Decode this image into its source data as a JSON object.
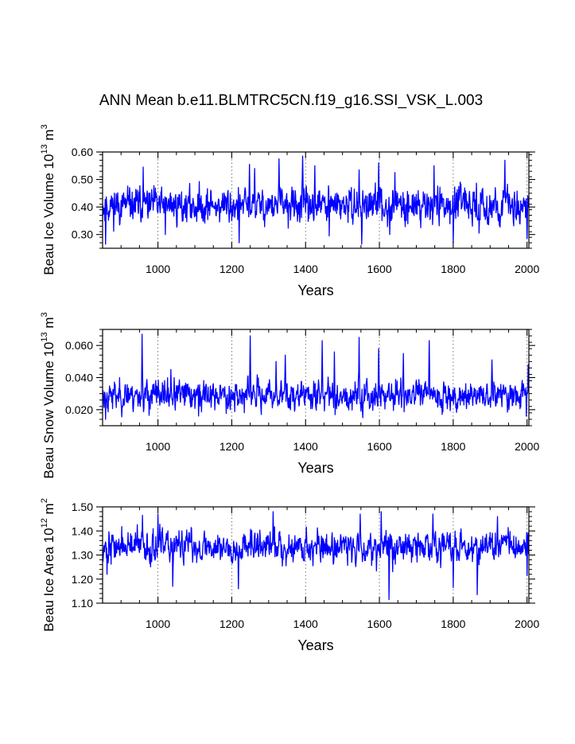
{
  "figure": {
    "title": "ANN Mean b.e11.BLMTRC5CN.f19_g16.SSI_VSK_L.003"
  },
  "colors": {
    "series": "#0000ff",
    "axis": "#000000",
    "grid": "#555555",
    "background": "#ffffff"
  },
  "chart_data": [
    {
      "type": "line",
      "title": "ANN Mean b.e11.BLMTRC5CN.f19_g16.SSI_VSK_L.003",
      "xlabel": "Years",
      "ylabel_main": "Beau Ice Volume 10",
      "ylabel_exp": "13",
      "ylabel_unit": "m",
      "ylabel_unit_exp": "3",
      "xlim": [
        850,
        2005
      ],
      "ylim": [
        0.25,
        0.6
      ],
      "xticks": [
        1000,
        1200,
        1400,
        1600,
        1800,
        2000
      ],
      "xtick_labels": [
        "1000",
        "1200",
        "1400",
        "1600",
        "1800",
        "2000"
      ],
      "yticks": [
        0.3,
        0.4,
        0.5,
        0.6
      ],
      "ytick_labels": [
        "0.30",
        "0.40",
        "0.50",
        "0.60"
      ],
      "grid": "vertical dotted at major x ticks",
      "series": [
        {
          "name": "Beau Ice Volume",
          "x_start": 850,
          "x_end": 2005,
          "mean": 0.405,
          "sd": 0.045,
          "min": 0.26,
          "max": 0.585,
          "seed": 11,
          "peaks": [
            [
              960,
              0.545
            ],
            [
              1248,
              0.555
            ],
            [
              1262,
              0.54
            ],
            [
              1328,
              0.575
            ],
            [
              1392,
              0.585
            ],
            [
              1425,
              0.55
            ],
            [
              1545,
              0.535
            ],
            [
              1598,
              0.56
            ],
            [
              1642,
              0.525
            ],
            [
              1748,
              0.55
            ],
            [
              1940,
              0.57
            ]
          ],
          "troughs": [
            [
              858,
              0.265
            ],
            [
              1020,
              0.3
            ],
            [
              1220,
              0.27
            ],
            [
              1464,
              0.295
            ],
            [
              1552,
              0.265
            ],
            [
              1628,
              0.3
            ],
            [
              1800,
              0.27
            ],
            [
              1870,
              0.305
            ],
            [
              2000,
              0.285
            ]
          ]
        }
      ]
    },
    {
      "type": "line",
      "xlabel": "Years",
      "ylabel_main": "Beau Snow Volume 10",
      "ylabel_exp": "13",
      "ylabel_unit": "m",
      "ylabel_unit_exp": "3",
      "xlim": [
        850,
        2005
      ],
      "ylim": [
        0.01,
        0.07
      ],
      "xticks": [
        1000,
        1200,
        1400,
        1600,
        1800,
        2000
      ],
      "xtick_labels": [
        "1000",
        "1200",
        "1400",
        "1600",
        "1800",
        "2000"
      ],
      "yticks": [
        0.02,
        0.04,
        0.06
      ],
      "ytick_labels": [
        "0.020",
        "0.040",
        "0.060"
      ],
      "grid": "vertical dotted at major x ticks",
      "series": [
        {
          "name": "Beau Snow Volume",
          "x_start": 850,
          "x_end": 2005,
          "mean": 0.029,
          "sd": 0.0065,
          "min": 0.014,
          "max": 0.067,
          "seed": 23,
          "peaks": [
            [
              957,
              0.067
            ],
            [
              1035,
              0.045
            ],
            [
              1250,
              0.066
            ],
            [
              1320,
              0.05
            ],
            [
              1345,
              0.054
            ],
            [
              1445,
              0.063
            ],
            [
              1478,
              0.056
            ],
            [
              1545,
              0.065
            ],
            [
              1598,
              0.058
            ],
            [
              1665,
              0.055
            ],
            [
              1735,
              0.063
            ],
            [
              1905,
              0.051
            ],
            [
              2003,
              0.048
            ]
          ],
          "troughs": [
            [
              858,
              0.014
            ],
            [
              1110,
              0.016
            ],
            [
              1555,
              0.015
            ],
            [
              1770,
              0.017
            ],
            [
              1998,
              0.016
            ]
          ]
        }
      ]
    },
    {
      "type": "line",
      "xlabel": "Years",
      "ylabel_main": "Beau Ice Area 10",
      "ylabel_exp": "12",
      "ylabel_unit": "m",
      "ylabel_unit_exp": "2",
      "xlim": [
        850,
        2005
      ],
      "ylim": [
        1.1,
        1.5
      ],
      "xticks": [
        1000,
        1200,
        1400,
        1600,
        1800,
        2000
      ],
      "xtick_labels": [
        "1000",
        "1200",
        "1400",
        "1600",
        "1800",
        "2000"
      ],
      "yticks": [
        1.1,
        1.2,
        1.3,
        1.4,
        1.5
      ],
      "ytick_labels": [
        "1.10",
        "1.20",
        "1.30",
        "1.40",
        "1.50"
      ],
      "grid": "vertical dotted at major x ticks",
      "series": [
        {
          "name": "Beau Ice Area",
          "x_start": 850,
          "x_end": 2005,
          "mean": 1.335,
          "sd": 0.047,
          "min": 1.11,
          "max": 1.48,
          "seed": 37,
          "peaks": [
            [
              958,
              1.465
            ],
            [
              1000,
              1.47
            ],
            [
              1312,
              1.48
            ],
            [
              1548,
              1.47
            ],
            [
              1605,
              1.48
            ],
            [
              1745,
              1.47
            ],
            [
              1920,
              1.46
            ]
          ],
          "troughs": [
            [
              862,
              1.22
            ],
            [
              1040,
              1.17
            ],
            [
              1218,
              1.16
            ],
            [
              1626,
              1.115
            ],
            [
              1800,
              1.165
            ],
            [
              1865,
              1.135
            ],
            [
              2000,
              1.215
            ]
          ]
        }
      ]
    }
  ]
}
